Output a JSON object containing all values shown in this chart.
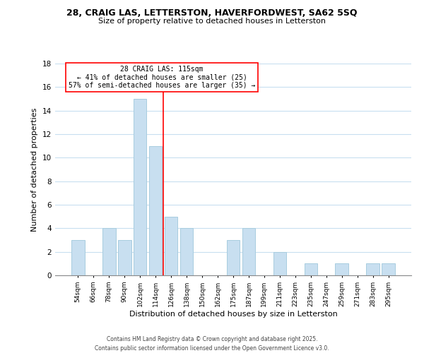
{
  "title": "28, CRAIG LAS, LETTERSTON, HAVERFORDWEST, SA62 5SQ",
  "subtitle": "Size of property relative to detached houses in Letterston",
  "xlabel": "Distribution of detached houses by size in Letterston",
  "ylabel": "Number of detached properties",
  "bar_color": "#c8dff0",
  "bar_edgecolor": "#a8ccdf",
  "background_color": "#ffffff",
  "grid_color": "#c8dff0",
  "vline_color": "red",
  "annotation_title": "28 CRAIG LAS: 115sqm",
  "annotation_line1": "← 41% of detached houses are smaller (25)",
  "annotation_line2": "57% of semi-detached houses are larger (35) →",
  "annotation_box_edgecolor": "red",
  "categories": [
    "54sqm",
    "66sqm",
    "78sqm",
    "90sqm",
    "102sqm",
    "114sqm",
    "126sqm",
    "138sqm",
    "150sqm",
    "162sqm",
    "175sqm",
    "187sqm",
    "199sqm",
    "211sqm",
    "223sqm",
    "235sqm",
    "247sqm",
    "259sqm",
    "271sqm",
    "283sqm",
    "295sqm"
  ],
  "values": [
    3,
    0,
    4,
    3,
    15,
    11,
    5,
    4,
    0,
    0,
    3,
    4,
    0,
    2,
    0,
    1,
    0,
    1,
    0,
    1,
    1
  ],
  "ylim": [
    0,
    18
  ],
  "yticks": [
    0,
    2,
    4,
    6,
    8,
    10,
    12,
    14,
    16,
    18
  ],
  "footer1": "Contains HM Land Registry data © Crown copyright and database right 2025.",
  "footer2": "Contains public sector information licensed under the Open Government Licence v3.0."
}
